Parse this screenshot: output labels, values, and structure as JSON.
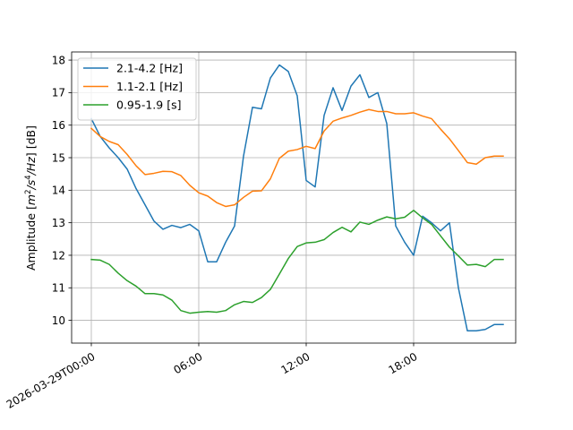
{
  "chart_data": {
    "type": "line",
    "title": "",
    "xlabel": "",
    "ylabel_parts": {
      "prefix": "Amplitude [",
      "m": "m",
      "exp2": "2",
      "slash_s": "/s",
      "exp4": "4",
      "slash_hz": "/Hz",
      "suffix": "] [dB]"
    },
    "xlim_hours": [
      -1.1,
      23.7
    ],
    "ylim": [
      9.3,
      18.25
    ],
    "x_ticks": [
      {
        "hour": 0,
        "label": "2026-03-29T00:00"
      },
      {
        "hour": 6,
        "label": "06:00"
      },
      {
        "hour": 12,
        "label": "12:00"
      },
      {
        "hour": 18,
        "label": "18:00"
      }
    ],
    "y_ticks": [
      {
        "value": 10,
        "label": "10"
      },
      {
        "value": 11,
        "label": "11"
      },
      {
        "value": 12,
        "label": "12"
      },
      {
        "value": 13,
        "label": "13"
      },
      {
        "value": 14,
        "label": "14"
      },
      {
        "value": 15,
        "label": "15"
      },
      {
        "value": 16,
        "label": "16"
      },
      {
        "value": 17,
        "label": "17"
      },
      {
        "value": 18,
        "label": "18"
      }
    ],
    "grid": true,
    "legend_position": "upper-left",
    "x_hours": [
      0,
      0.5,
      1,
      1.5,
      2,
      2.5,
      3,
      3.5,
      4,
      4.5,
      5,
      5.5,
      6,
      6.5,
      7,
      7.5,
      8,
      8.5,
      9,
      9.5,
      10,
      10.5,
      11,
      11.5,
      12,
      12.5,
      13,
      13.5,
      14,
      14.5,
      15,
      15.5,
      16,
      16.5,
      17,
      17.5,
      18,
      18.5,
      19,
      19.5,
      20,
      20.5,
      21,
      21.5,
      22,
      22.5,
      23
    ],
    "series": [
      {
        "name": "2.1-4.2 [Hz]",
        "color": "#1f77b4",
        "values": [
          16.2,
          15.65,
          15.3,
          15.0,
          14.65,
          14.05,
          13.55,
          13.05,
          12.8,
          12.92,
          12.85,
          12.95,
          12.75,
          11.8,
          11.8,
          12.4,
          12.9,
          15.05,
          16.55,
          16.5,
          17.45,
          17.85,
          17.65,
          16.9,
          14.3,
          14.1,
          16.3,
          17.15,
          16.45,
          17.2,
          17.55,
          16.85,
          17.0,
          16.05,
          12.9,
          12.4,
          12.0,
          13.2,
          13.0,
          12.75,
          13.0,
          11.0,
          9.68,
          9.68,
          9.72,
          9.87,
          9.87
        ]
      },
      {
        "name": "1.1-2.1 [Hz]",
        "color": "#ff7f0e",
        "values": [
          15.9,
          15.65,
          15.5,
          15.4,
          15.1,
          14.75,
          14.48,
          14.52,
          14.58,
          14.57,
          14.45,
          14.15,
          13.92,
          13.82,
          13.62,
          13.5,
          13.55,
          13.78,
          13.97,
          13.98,
          14.35,
          14.98,
          15.2,
          15.25,
          15.35,
          15.28,
          15.82,
          16.12,
          16.22,
          16.3,
          16.4,
          16.48,
          16.42,
          16.42,
          16.35,
          16.35,
          16.38,
          16.28,
          16.2,
          15.88,
          15.58,
          15.22,
          14.85,
          14.8,
          15.0,
          15.05,
          15.05
        ]
      },
      {
        "name": "0.95-1.9 [s]",
        "color": "#2ca02c",
        "values": [
          11.87,
          11.85,
          11.72,
          11.45,
          11.22,
          11.05,
          10.82,
          10.82,
          10.78,
          10.62,
          10.3,
          10.22,
          10.25,
          10.27,
          10.25,
          10.3,
          10.48,
          10.58,
          10.55,
          10.7,
          10.95,
          11.42,
          11.9,
          12.27,
          12.38,
          12.4,
          12.48,
          12.7,
          12.86,
          12.72,
          13.02,
          12.95,
          13.08,
          13.18,
          13.12,
          13.17,
          13.38,
          13.15,
          12.95,
          12.6,
          12.25,
          11.98,
          11.7,
          11.72,
          11.65,
          11.87,
          11.87
        ]
      }
    ]
  }
}
